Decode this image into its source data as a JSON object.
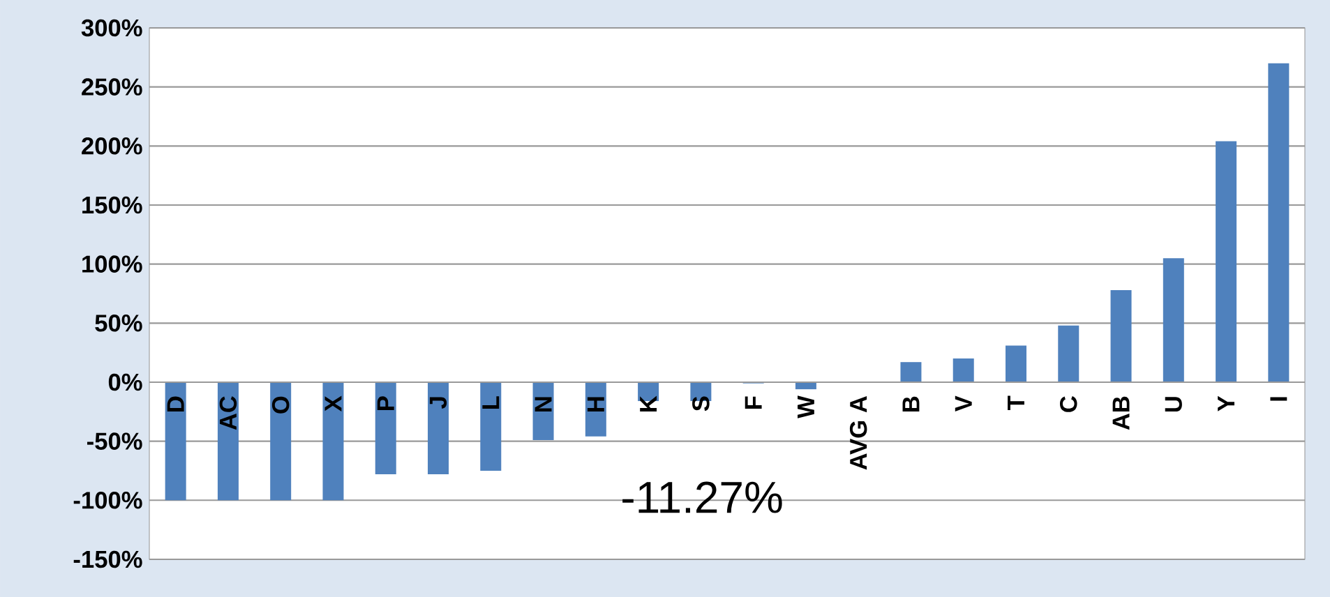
{
  "chart_data": {
    "type": "bar",
    "categories": [
      "D",
      "AC",
      "O",
      "X",
      "P",
      "J",
      "L",
      "N",
      "H",
      "K",
      "S",
      "F",
      "W",
      "AVG A",
      "B",
      "V",
      "T",
      "C",
      "AB",
      "U",
      "Y",
      "I"
    ],
    "values": [
      -100,
      -100,
      -100,
      -100,
      -78,
      -78,
      -75,
      -49,
      -46,
      -16,
      -16,
      -1,
      -6,
      null,
      17,
      20,
      31,
      48,
      78,
      105,
      204,
      270
    ],
    "color": "#4f81bd",
    "ylim": [
      -150,
      300
    ],
    "yticks": [
      {
        "value": -150,
        "label": "-150%"
      },
      {
        "value": -100,
        "label": "-100%"
      },
      {
        "value": -50,
        "label": "-50%"
      },
      {
        "value": 0,
        "label": "0%"
      },
      {
        "value": 50,
        "label": "50%"
      },
      {
        "value": 100,
        "label": "100%"
      },
      {
        "value": 150,
        "label": "150%"
      },
      {
        "value": 200,
        "label": "200%"
      },
      {
        "value": 250,
        "label": "250%"
      },
      {
        "value": 300,
        "label": "300%"
      }
    ],
    "grid": "y",
    "annotations": [
      "-11.27%"
    ]
  }
}
